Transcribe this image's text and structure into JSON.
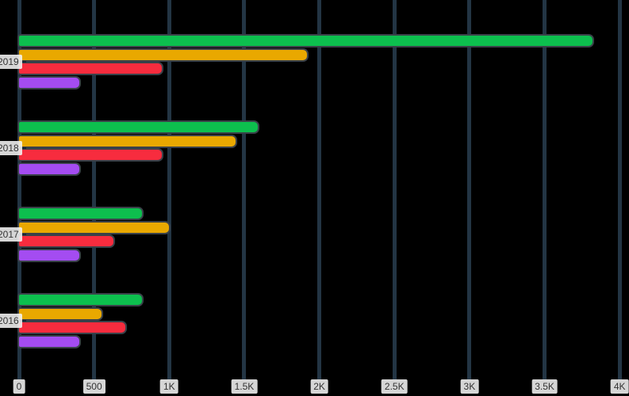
{
  "chart_data": {
    "type": "bar",
    "orientation": "horizontal",
    "categories": [
      "2019",
      "2018",
      "2017",
      "2016"
    ],
    "series": [
      {
        "name": "green",
        "color": "#0dbf4e",
        "values": [
          3820,
          1590,
          820,
          820
        ]
      },
      {
        "name": "yellow",
        "color": "#e9a800",
        "values": [
          1920,
          1440,
          1000,
          550
        ]
      },
      {
        "name": "red",
        "color": "#f72c3e",
        "values": [
          950,
          950,
          630,
          710
        ]
      },
      {
        "name": "purple",
        "color": "#a44cf1",
        "values": [
          400,
          400,
          400,
          400
        ]
      }
    ],
    "x_ticks": [
      {
        "value": 0,
        "label": "0"
      },
      {
        "value": 500,
        "label": "500"
      },
      {
        "value": 1000,
        "label": "1K"
      },
      {
        "value": 1500,
        "label": "1.5K"
      },
      {
        "value": 2000,
        "label": "2K"
      },
      {
        "value": 2500,
        "label": "2.5K"
      },
      {
        "value": 3000,
        "label": "3K"
      },
      {
        "value": 3500,
        "label": "3.5K"
      },
      {
        "value": 4000,
        "label": "4K"
      }
    ],
    "xlim": [
      0,
      4000
    ],
    "grid": "vertical",
    "legend": "none",
    "colors": {
      "background": "#000000",
      "gridline": "#233544",
      "bar_outline": "#3a4149",
      "axis_chip_bg": "#f4f4f4",
      "axis_chip_text": "#333333"
    }
  }
}
